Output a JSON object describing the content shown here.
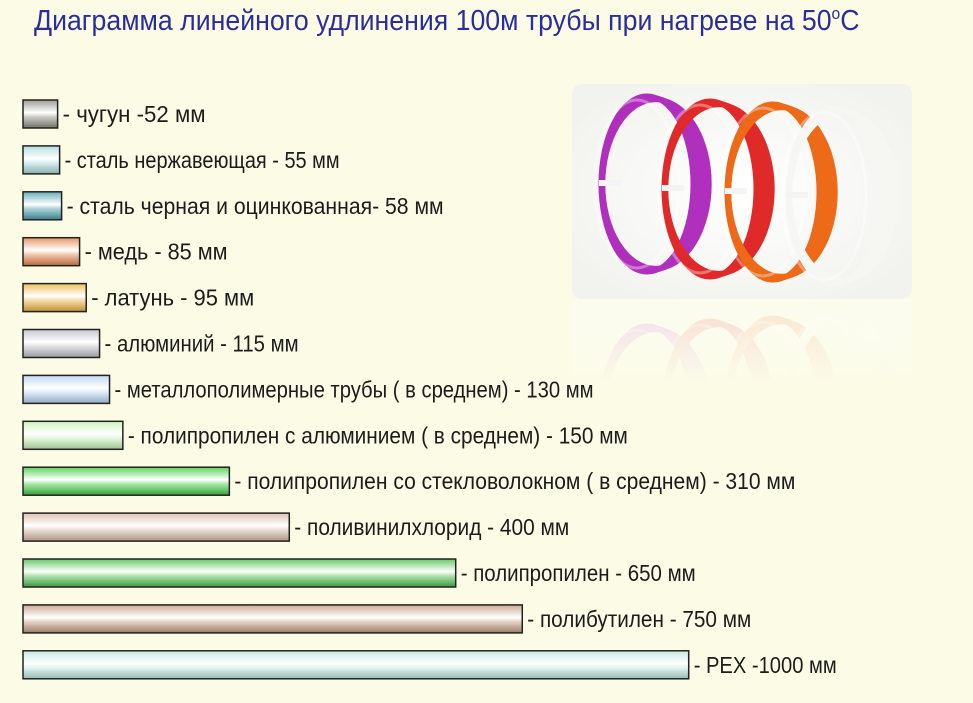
{
  "title": {
    "main": "Диаграмма линейного удлинения 100м трубы при нагреве на 50",
    "degree": "o",
    "unit": "C"
  },
  "chart_data": {
    "type": "bar",
    "orientation": "horizontal",
    "title": "Диаграмма линейного удлинения 100м трубы при нагреве на 50°С",
    "unit": "мм",
    "grid": false,
    "legend": "none",
    "categories": [
      "чугун",
      "сталь нержавеющая",
      "сталь черная и оцинкованная",
      "медь",
      "латунь",
      "алюминий",
      "металлополимерные трубы ( в среднем)",
      "полипропилен с алюминием ( в среднем)",
      "полипропилен со стекловолокном ( в среднем)",
      "поливинилхлорид",
      "полипропилен",
      "полибутилен",
      "PEX"
    ],
    "values": [
      52,
      55,
      58,
      85,
      95,
      115,
      130,
      150,
      310,
      400,
      650,
      750,
      1000
    ],
    "labels": [
      "- чугун -52 мм",
      "- сталь нержавеющая - 55 мм",
      "- сталь черная и оцинкованная- 58  мм",
      "- медь - 85 мм",
      "- латунь - 95 мм",
      "- алюминий - 115 мм",
      "- металлополимерные трубы ( в среднем) - 130 мм",
      "- полипропилен с алюминием ( в среднем)  - 150 мм",
      "- полипропилен со стекловолокном ( в среднем)  - 310 мм",
      "- поливинилхлорид  - 400 мм",
      "- полипропилен - 650 мм",
      "- полибутилен - 750 мм",
      "- РЕХ -1000 мм"
    ],
    "colors": [
      "#8e8e82",
      "#a9d9d9",
      "#4a9eae",
      "#e3834a",
      "#ecb43e",
      "#bebec6",
      "#b8d4f2",
      "#c6f2b4",
      "#3ecc3e",
      "#d8b8a4",
      "#4cc04c",
      "#c49c80",
      "#bde8e2"
    ]
  },
  "photo": {
    "coil_colors": [
      "#b02fbc",
      "#e02a2a",
      "#ec6a18",
      "#f6f6f2"
    ]
  }
}
